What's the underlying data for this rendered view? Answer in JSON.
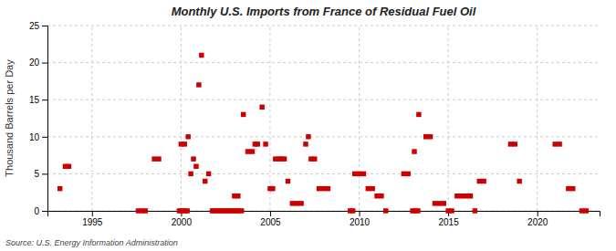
{
  "chart_data": {
    "type": "scatter",
    "title": "Monthly U.S. Imports from France of Residual Fuel Oil",
    "y_label": "Thousand Barrels per Day",
    "annotations": [
      "Source: U.S. Energy Information Administration"
    ],
    "color": "#cc0000",
    "marker": "square",
    "grid": true,
    "xlim": [
      1992.5,
      2023.5
    ],
    "ylim": [
      0,
      25
    ],
    "xticks": [
      1995,
      2000,
      2005,
      2010,
      2015,
      2020
    ],
    "yticks": [
      0,
      5,
      10,
      15,
      20,
      25
    ],
    "x": [
      1993.2,
      1993.5,
      1993.7,
      1997.6,
      1997.8,
      1998.0,
      1998.5,
      1998.75,
      1999.9,
      2000.05,
      2000.2,
      2000.35,
      2000.0,
      2000.2,
      2000.4,
      2000.55,
      2000.7,
      2000.85,
      2001.0,
      2001.15,
      2001.35,
      2001.55,
      2001.75,
      2001.9,
      2002.05,
      2002.2,
      2002.35,
      2002.5,
      2002.65,
      2002.8,
      2002.95,
      2003.1,
      2003.25,
      2003.4,
      2003.0,
      2003.2,
      2003.5,
      2003.75,
      2004.0,
      2004.15,
      2004.3,
      2004.55,
      2004.75,
      2005.0,
      2005.15,
      2005.3,
      2005.5,
      2005.65,
      2005.8,
      2006.0,
      2006.25,
      2006.5,
      2006.75,
      2007.0,
      2007.15,
      2007.3,
      2007.5,
      2007.75,
      2008.0,
      2008.25,
      2009.5,
      2009.65,
      2009.75,
      2010.0,
      2010.25,
      2010.5,
      2010.75,
      2011.0,
      2011.25,
      2011.5,
      2012.5,
      2012.75,
      2013.0,
      2013.15,
      2013.3,
      2013.1,
      2013.35,
      2013.75,
      2014.0,
      2014.25,
      2014.5,
      2014.75,
      2015.0,
      2015.2,
      2015.5,
      2015.75,
      2016.0,
      2016.25,
      2016.5,
      2016.75,
      2017.0,
      2018.5,
      2018.75,
      2019.0,
      2021.0,
      2021.25,
      2021.75,
      2022.0,
      2022.5,
      2022.75
    ],
    "values": [
      3,
      6,
      6,
      0,
      0,
      0,
      7,
      7,
      0,
      0,
      0,
      0,
      9,
      9,
      10,
      5,
      7,
      6,
      17,
      21,
      4,
      5,
      0,
      0,
      0,
      0,
      0,
      0,
      0,
      0,
      0,
      0,
      0,
      0,
      2,
      2,
      13,
      8,
      8,
      9,
      9,
      14,
      9,
      3,
      3,
      7,
      7,
      7,
      7,
      4,
      1,
      1,
      1,
      9,
      10,
      7,
      7,
      3,
      3,
      3,
      0,
      0,
      5,
      5,
      5,
      3,
      3,
      2,
      2,
      0,
      5,
      5,
      0,
      0,
      0,
      8,
      13,
      10,
      10,
      1,
      1,
      1,
      0,
      0,
      2,
      2,
      2,
      2,
      0,
      4,
      4,
      9,
      9,
      4,
      9,
      9,
      3,
      3,
      0,
      0
    ]
  }
}
